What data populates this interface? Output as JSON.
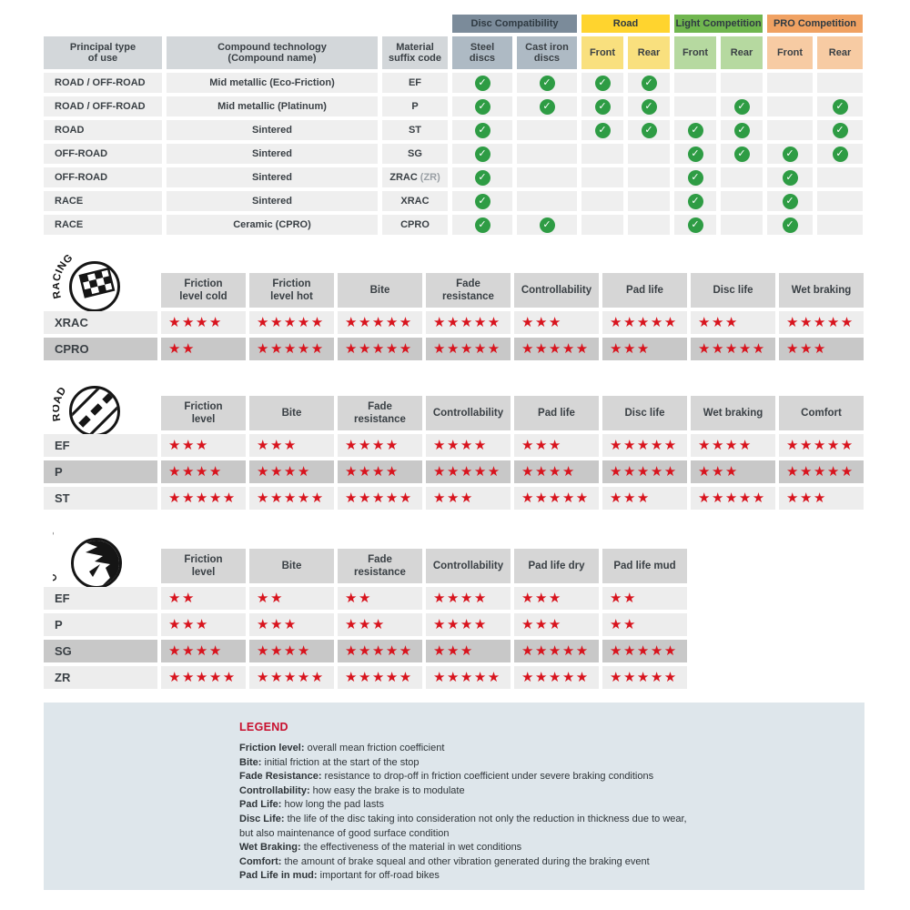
{
  "colors": {
    "star_red": "#D8141E",
    "check_green": "#2E9C44",
    "legend_title_red": "#C8102E",
    "disc_group": "#7B8B9A",
    "road_group": "#FFD42E",
    "light_group": "#70B64F",
    "pro_group": "#F0A263"
  },
  "chart_data": [
    {
      "type": "table",
      "name": "compatibility-matrix",
      "left_headers": [
        "Principal type\nof use",
        "Compound technology\n(Compound name)",
        "Material\nsuffix code"
      ],
      "groups": [
        {
          "key": "disc",
          "label": "Disc Compatibility",
          "bg": "#7B8B9A",
          "sub_bg": "#AEBAC4"
        },
        {
          "key": "road",
          "label": "Road",
          "bg": "#FFD42E",
          "sub_bg": "#F9E07E"
        },
        {
          "key": "light",
          "label": "Light Competition",
          "bg": "#70B64F",
          "sub_bg": "#B6D9A0"
        },
        {
          "key": "pro",
          "label": "PRO Competition",
          "bg": "#F0A263",
          "sub_bg": "#F7CBA3"
        }
      ],
      "sub_headers": [
        "Steel\ndiscs",
        "Cast iron\ndiscs",
        "Front",
        "Rear",
        "Front",
        "Rear",
        "Front",
        "Rear"
      ],
      "rows": [
        {
          "use": "ROAD / OFF-ROAD",
          "tech": "Mid metallic (Eco-Friction)",
          "code": "EF",
          "code_note": "",
          "checks": [
            1,
            1,
            1,
            1,
            0,
            0,
            0,
            0
          ]
        },
        {
          "use": "ROAD / OFF-ROAD",
          "tech": "Mid metallic (Platinum)",
          "code": "P",
          "code_note": "",
          "checks": [
            1,
            1,
            1,
            1,
            0,
            1,
            0,
            1
          ]
        },
        {
          "use": "ROAD",
          "tech": "Sintered",
          "code": "ST",
          "code_note": "",
          "checks": [
            1,
            0,
            1,
            1,
            1,
            1,
            0,
            1
          ]
        },
        {
          "use": "OFF-ROAD",
          "tech": "Sintered",
          "code": "SG",
          "code_note": "",
          "checks": [
            1,
            0,
            0,
            0,
            1,
            1,
            1,
            1
          ]
        },
        {
          "use": "OFF-ROAD",
          "tech": "Sintered",
          "code": "ZRAC",
          "code_note": "(ZR)",
          "checks": [
            1,
            0,
            0,
            0,
            1,
            0,
            1,
            0
          ]
        },
        {
          "use": "RACE",
          "tech": "Sintered",
          "code": "XRAC",
          "code_note": "",
          "checks": [
            1,
            0,
            0,
            0,
            1,
            0,
            1,
            0
          ]
        },
        {
          "use": "RACE",
          "tech": "Ceramic (CPRO)",
          "code": "CPRO",
          "code_note": "",
          "checks": [
            1,
            1,
            0,
            0,
            1,
            0,
            1,
            0
          ]
        }
      ]
    },
    {
      "type": "table",
      "name": "racing-ratings",
      "icon_label": "RACING",
      "max_stars": 5,
      "columns": [
        "Friction\nlevel cold",
        "Friction\nlevel hot",
        "Bite",
        "Fade\nresistance",
        "Controllability",
        "Pad life",
        "Disc life",
        "Wet braking"
      ],
      "rows": [
        {
          "label": "XRAC",
          "dark": false,
          "stars": [
            4,
            5,
            5,
            5,
            3,
            5,
            3,
            5
          ]
        },
        {
          "label": "CPRO",
          "dark": true,
          "stars": [
            2,
            5,
            5,
            5,
            5,
            3,
            5,
            3
          ]
        }
      ]
    },
    {
      "type": "table",
      "name": "road-ratings",
      "icon_label": "ROAD",
      "max_stars": 5,
      "columns": [
        "Friction\nlevel",
        "Bite",
        "Fade\nresistance",
        "Controllability",
        "Pad life",
        "Disc life",
        "Wet braking",
        "Comfort"
      ],
      "rows": [
        {
          "label": "EF",
          "dark": false,
          "stars": [
            3,
            3,
            4,
            4,
            3,
            5,
            4,
            5
          ]
        },
        {
          "label": "P",
          "dark": true,
          "stars": [
            4,
            4,
            4,
            5,
            4,
            5,
            3,
            5
          ]
        },
        {
          "label": "ST",
          "dark": false,
          "stars": [
            5,
            5,
            5,
            3,
            5,
            3,
            5,
            3
          ]
        }
      ]
    },
    {
      "type": "table",
      "name": "offroad-ratings",
      "icon_label": "OFF-ROAD",
      "max_stars": 5,
      "columns": [
        "Friction\nlevel",
        "Bite",
        "Fade\nresistance",
        "Controllability",
        "Pad life dry",
        "Pad life mud"
      ],
      "rows": [
        {
          "label": "EF",
          "dark": false,
          "stars": [
            2,
            2,
            2,
            4,
            3,
            2
          ]
        },
        {
          "label": "P",
          "dark": false,
          "stars": [
            3,
            3,
            3,
            4,
            3,
            2
          ]
        },
        {
          "label": "SG",
          "dark": true,
          "stars": [
            4,
            4,
            5,
            3,
            5,
            5
          ]
        },
        {
          "label": "ZR",
          "dark": false,
          "stars": [
            5,
            5,
            5,
            5,
            5,
            5
          ]
        }
      ]
    }
  ],
  "legend": {
    "title": "LEGEND",
    "entries": [
      {
        "term": "Friction level",
        "desc": "overall mean friction coefficient"
      },
      {
        "term": "Bite",
        "desc": "initial friction at the start of the stop"
      },
      {
        "term": "Fade Resistance",
        "desc": "resistance to drop-off in friction coefficient under severe braking conditions"
      },
      {
        "term": "Controllability",
        "desc": "how easy the brake is to modulate"
      },
      {
        "term": "Pad Life",
        "desc": "how long the pad lasts"
      },
      {
        "term": "Disc Life",
        "desc": "the life of the disc taking into consideration not only the reduction in thickness due to wear,"
      },
      {
        "term": "",
        "desc": "but also maintenance of good surface condition"
      },
      {
        "term": "Wet Braking",
        "desc": "the effectiveness of the material in wet conditions"
      },
      {
        "term": "Comfort",
        "desc": "the amount of brake squeal and other vibration generated during the braking event"
      },
      {
        "term": "Pad Life in mud",
        "desc": "important for off-road bikes"
      }
    ]
  }
}
